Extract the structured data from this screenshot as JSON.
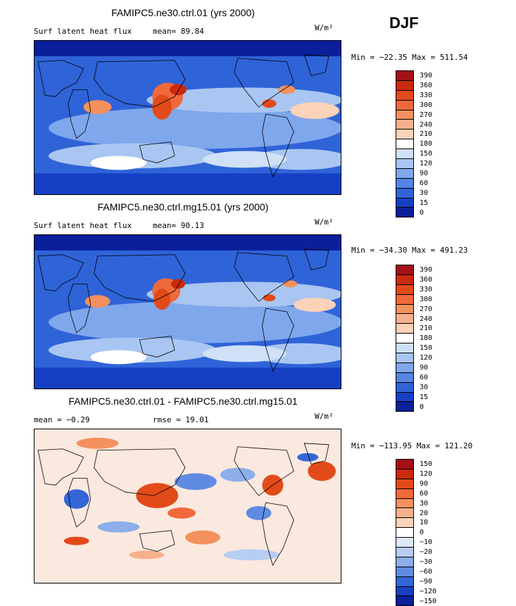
{
  "season": "DJF",
  "panels": [
    {
      "title": "FAMIPC5.ne30.ctrl.01 (yrs 2000)",
      "stat_left": "Surf latent heat flux",
      "stat_right": "mean=  89.84",
      "units": "W/m²",
      "minmax": "Min = −22.35 Max = 511.54",
      "colorbar": {
        "levels": [
          "390",
          "360",
          "330",
          "300",
          "270",
          "240",
          "210",
          "180",
          "150",
          "120",
          "90",
          "60",
          "30",
          "15",
          "0"
        ],
        "colors": [
          "#a50f15",
          "#cb2a0c",
          "#e34a1a",
          "#f0693a",
          "#f4915e",
          "#f7b08c",
          "#fbd3b8",
          "#ffffff",
          "#cfe0f7",
          "#a9c6f2",
          "#7fa7ec",
          "#5484e4",
          "#2f63d8",
          "#1540c4",
          "#0a1f9a"
        ]
      }
    },
    {
      "title": "FAMIPC5.ne30.ctrl.mg15.01 (yrs 2000)",
      "stat_left": "Surf latent heat flux",
      "stat_right": "mean=  90.13",
      "units": "W/m²",
      "minmax": "Min = −34.30 Max = 491.23",
      "colorbar": {
        "levels": [
          "390",
          "360",
          "330",
          "300",
          "270",
          "240",
          "210",
          "180",
          "150",
          "120",
          "90",
          "60",
          "30",
          "15",
          "0"
        ],
        "colors": [
          "#a50f15",
          "#cb2a0c",
          "#e34a1a",
          "#f0693a",
          "#f4915e",
          "#f7b08c",
          "#fbd3b8",
          "#ffffff",
          "#cfe0f7",
          "#a9c6f2",
          "#7fa7ec",
          "#5484e4",
          "#2f63d8",
          "#1540c4",
          "#0a1f9a"
        ]
      }
    },
    {
      "title": "FAMIPC5.ne30.ctrl.01 - FAMIPC5.ne30.ctrl.mg15.01",
      "stat_left": "mean =  −0.29",
      "stat_right": "rmse =  19.01",
      "units": "W/m²",
      "minmax": "Min = −113.95 Max = 121.20",
      "colorbar": {
        "levels": [
          "150",
          "120",
          "90",
          "60",
          "30",
          "20",
          "10",
          "0",
          "−10",
          "−20",
          "−30",
          "−60",
          "−90",
          "−120",
          "−150"
        ],
        "colors": [
          "#a50f15",
          "#cb2a0c",
          "#e34a1a",
          "#f0693a",
          "#f4915e",
          "#f7b08c",
          "#fbd3b8",
          "#ffffff",
          "#dfe8f8",
          "#b7cdf2",
          "#8daeea",
          "#5f8be3",
          "#3466d8",
          "#1840c0",
          "#0a1f9a"
        ]
      }
    }
  ],
  "chart_data": {
    "type": "heatmap",
    "season": "DJF",
    "variable": "Surf latent heat flux",
    "units": "W/m²",
    "maps": [
      {
        "title": "FAMIPC5.ne30.ctrl.01 (yrs 2000)",
        "mean": 89.84,
        "min": -22.35,
        "max": 511.54,
        "levels": [
          0,
          15,
          30,
          60,
          90,
          120,
          150,
          180,
          210,
          240,
          270,
          300,
          330,
          360,
          390
        ]
      },
      {
        "title": "FAMIPC5.ne30.ctrl.mg15.01 (yrs 2000)",
        "mean": 90.13,
        "min": -34.3,
        "max": 491.23,
        "levels": [
          0,
          15,
          30,
          60,
          90,
          120,
          150,
          180,
          210,
          240,
          270,
          300,
          330,
          360,
          390
        ]
      },
      {
        "title": "FAMIPC5.ne30.ctrl.01 - FAMIPC5.ne30.ctrl.mg15.01",
        "mean": -0.29,
        "rmse": 19.01,
        "min": -113.95,
        "max": 121.2,
        "levels": [
          -150,
          -120,
          -90,
          -60,
          -30,
          -20,
          -10,
          0,
          10,
          20,
          30,
          60,
          90,
          120,
          150
        ]
      }
    ]
  }
}
